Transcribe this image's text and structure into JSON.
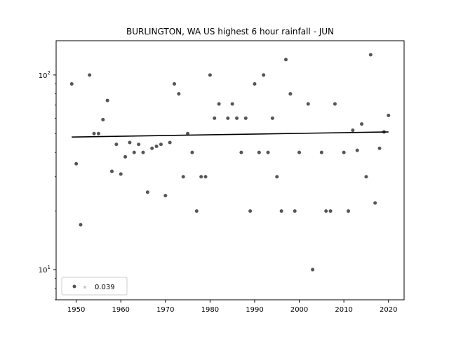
{
  "chart_data": {
    "type": "scatter",
    "title": "BURLINGTON, WA US highest 6 hour rainfall - JUN",
    "xlabel": "",
    "ylabel": "",
    "yscale": "log",
    "xlim": [
      1945.5,
      2023.5
    ],
    "ylim": [
      7.0,
      150.0
    ],
    "x_ticks": [
      1950,
      1960,
      1970,
      1980,
      1990,
      2000,
      2010,
      2020
    ],
    "y_ticks": [
      {
        "value": 10,
        "base": "10",
        "exp": "1"
      },
      {
        "value": 100,
        "base": "10",
        "exp": "2"
      }
    ],
    "grid": false,
    "legend": {
      "placement": "lower-left",
      "entries": [
        {
          "label": "0.039"
        }
      ]
    },
    "colors": {
      "points": "#555555",
      "trend": "#000000"
    },
    "trend": {
      "x": [
        1949,
        2020
      ],
      "y": [
        48,
        51
      ]
    },
    "series": [
      {
        "points": [
          [
            1949,
            90
          ],
          [
            1950,
            35
          ],
          [
            1951,
            17
          ],
          [
            1953,
            100
          ],
          [
            1954,
            50
          ],
          [
            1955,
            50
          ],
          [
            1956,
            59
          ],
          [
            1957,
            74
          ],
          [
            1958,
            32
          ],
          [
            1959,
            44
          ],
          [
            1960,
            31
          ],
          [
            1961,
            38
          ],
          [
            1962,
            45
          ],
          [
            1963,
            40
          ],
          [
            1964,
            44
          ],
          [
            1965,
            40
          ],
          [
            1966,
            25
          ],
          [
            1967,
            42
          ],
          [
            1968,
            43
          ],
          [
            1969,
            44
          ],
          [
            1970,
            24
          ],
          [
            1971,
            45
          ],
          [
            1972,
            90
          ],
          [
            1973,
            80
          ],
          [
            1974,
            30
          ],
          [
            1975,
            50
          ],
          [
            1976,
            40
          ],
          [
            1977,
            20
          ],
          [
            1978,
            30
          ],
          [
            1979,
            30
          ],
          [
            1980,
            100
          ],
          [
            1981,
            60
          ],
          [
            1982,
            71
          ],
          [
            1984,
            60
          ],
          [
            1985,
            71
          ],
          [
            1986,
            60
          ],
          [
            1987,
            40
          ],
          [
            1988,
            60
          ],
          [
            1989,
            20
          ],
          [
            1990,
            90
          ],
          [
            1991,
            40
          ],
          [
            1992,
            100
          ],
          [
            1993,
            40
          ],
          [
            1994,
            60
          ],
          [
            1995,
            30
          ],
          [
            1996,
            20
          ],
          [
            1997,
            120
          ],
          [
            1998,
            80
          ],
          [
            1999,
            20
          ],
          [
            2000,
            40
          ],
          [
            2002,
            71
          ],
          [
            2003,
            10
          ],
          [
            2005,
            40
          ],
          [
            2006,
            20
          ],
          [
            2007,
            20
          ],
          [
            2008,
            71
          ],
          [
            2010,
            40
          ],
          [
            2011,
            20
          ],
          [
            2012,
            52
          ],
          [
            2013,
            41
          ],
          [
            2014,
            56
          ],
          [
            2015,
            30
          ],
          [
            2016,
            127
          ],
          [
            2017,
            22
          ],
          [
            2018,
            42
          ],
          [
            2019,
            51
          ],
          [
            2020,
            62
          ]
        ]
      }
    ]
  }
}
